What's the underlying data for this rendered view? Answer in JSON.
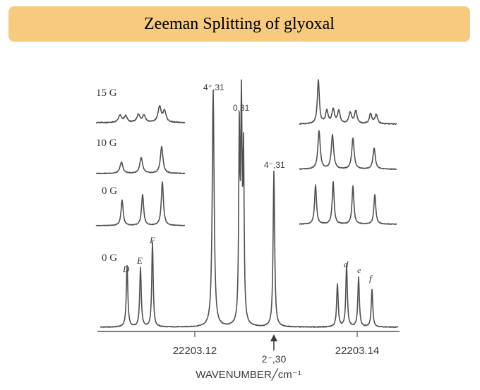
{
  "slide": {
    "title": "Zeeman Splitting of glyoxal"
  },
  "chart_data": {
    "type": "line",
    "title": "",
    "xlabel": "WAVENUMBER╱cm⁻¹",
    "ylabel": "",
    "x_ticks": [
      "22203.12",
      "22203.14"
    ],
    "x_tick_values": [
      22203.12,
      22203.14
    ],
    "arrow_marker": {
      "label": "2⁻,30"
    },
    "main_spectrum": {
      "field": "0 G",
      "peaks": [
        {
          "label": "D",
          "height": 0.26
        },
        {
          "label": "E",
          "height": 0.25
        },
        {
          "label": "F",
          "height": 0.36
        },
        {
          "label": "4⁺,31",
          "height": 1.0
        },
        {
          "label": "0,31",
          "height": 0.9
        },
        {
          "label": "4⁻,31",
          "height": 0.66
        },
        {
          "label": "d",
          "height": 0.26
        },
        {
          "label": "e",
          "height": 0.21
        },
        {
          "label": "f",
          "height": 0.16
        }
      ]
    },
    "insets": [
      {
        "field": "15 G",
        "panel": "left"
      },
      {
        "field": "10 G",
        "panel": "left"
      },
      {
        "field": "0 G",
        "panel": "left"
      },
      {
        "field": "15 G",
        "panel": "right"
      },
      {
        "field": "10 G",
        "panel": "right"
      },
      {
        "field": "0 G",
        "panel": "right"
      }
    ],
    "inset_labels": [
      "15 G",
      "10 G",
      "0 G"
    ]
  }
}
